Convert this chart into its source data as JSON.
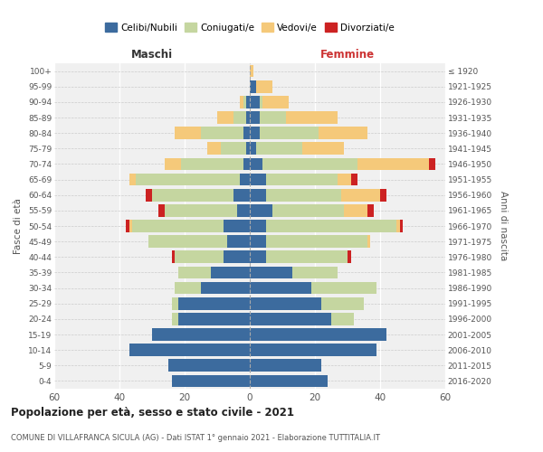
{
  "age_groups": [
    "0-4",
    "5-9",
    "10-14",
    "15-19",
    "20-24",
    "25-29",
    "30-34",
    "35-39",
    "40-44",
    "45-49",
    "50-54",
    "55-59",
    "60-64",
    "65-69",
    "70-74",
    "75-79",
    "80-84",
    "85-89",
    "90-94",
    "95-99",
    "100+"
  ],
  "birth_years": [
    "2016-2020",
    "2011-2015",
    "2006-2010",
    "2001-2005",
    "1996-2000",
    "1991-1995",
    "1986-1990",
    "1981-1985",
    "1976-1980",
    "1971-1975",
    "1966-1970",
    "1961-1965",
    "1956-1960",
    "1951-1955",
    "1946-1950",
    "1941-1945",
    "1936-1940",
    "1931-1935",
    "1926-1930",
    "1921-1925",
    "≤ 1920"
  ],
  "male_celibi": [
    24,
    25,
    37,
    30,
    22,
    22,
    15,
    12,
    8,
    7,
    8,
    4,
    5,
    3,
    2,
    1,
    2,
    1,
    1,
    0,
    0
  ],
  "male_coniugati": [
    0,
    0,
    0,
    0,
    2,
    2,
    8,
    10,
    15,
    24,
    28,
    22,
    25,
    32,
    19,
    8,
    13,
    4,
    1,
    0,
    0
  ],
  "male_vedovi": [
    0,
    0,
    0,
    0,
    0,
    0,
    0,
    0,
    0,
    0,
    1,
    0,
    0,
    2,
    5,
    4,
    8,
    5,
    1,
    0,
    0
  ],
  "male_divorziati": [
    0,
    0,
    0,
    0,
    0,
    0,
    0,
    0,
    1,
    0,
    1,
    2,
    2,
    0,
    0,
    0,
    0,
    0,
    0,
    0,
    0
  ],
  "female_celibi": [
    24,
    22,
    39,
    42,
    25,
    22,
    19,
    13,
    5,
    5,
    5,
    7,
    5,
    5,
    4,
    2,
    3,
    3,
    3,
    2,
    0
  ],
  "female_coniugati": [
    0,
    0,
    0,
    0,
    7,
    13,
    20,
    14,
    25,
    31,
    40,
    22,
    23,
    22,
    29,
    14,
    18,
    8,
    1,
    0,
    0
  ],
  "female_vedovi": [
    0,
    0,
    0,
    0,
    0,
    0,
    0,
    0,
    0,
    1,
    1,
    7,
    12,
    4,
    22,
    13,
    15,
    16,
    8,
    5,
    1
  ],
  "female_divorziati": [
    0,
    0,
    0,
    0,
    0,
    0,
    0,
    0,
    1,
    0,
    1,
    2,
    2,
    2,
    2,
    0,
    0,
    0,
    0,
    0,
    0
  ],
  "colors": {
    "celibi": "#3c6b9e",
    "coniugati": "#c5d6a0",
    "vedovi": "#f5c97a",
    "divorziati": "#cc2222"
  },
  "xlim": 60,
  "title": "Popolazione per età, sesso e stato civile - 2021",
  "subtitle": "COMUNE DI VILLAFRANCA SICULA (AG) - Dati ISTAT 1° gennaio 2021 - Elaborazione TUTTITALIA.IT",
  "xlabel_left": "Maschi",
  "xlabel_right": "Femmine",
  "ylabel_left": "Fasce di età",
  "ylabel_right": "Anni di nascita",
  "background_color": "#ffffff",
  "legend_labels": [
    "Celibi/Nubili",
    "Coniugati/e",
    "Vedovi/e",
    "Divorziati/e"
  ]
}
